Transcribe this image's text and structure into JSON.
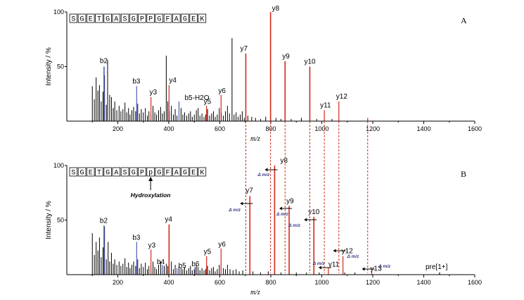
{
  "chart_data": [
    {
      "type": "bar",
      "title": "",
      "panel_label": "A",
      "xlabel": "m/z",
      "ylabel": "Intensity / %",
      "xlim": [
        0,
        1600
      ],
      "x_ticks": [
        "200",
        "400",
        "600",
        "800",
        "1000",
        "1200",
        "1400",
        "1600"
      ],
      "ylim": [
        0,
        100
      ],
      "y_ticks": [
        "100",
        "50"
      ],
      "sequence": [
        "S",
        "G",
        "E",
        "T",
        "G",
        "A",
        "S",
        "G",
        "P",
        "P",
        "G",
        "F",
        "A",
        "G",
        "E",
        "K"
      ],
      "background_peaks": [
        [
          100,
          32
        ],
        [
          108,
          20
        ],
        [
          115,
          40
        ],
        [
          122,
          28
        ],
        [
          128,
          33
        ],
        [
          135,
          18
        ],
        [
          142,
          27
        ],
        [
          148,
          42
        ],
        [
          155,
          15
        ],
        [
          160,
          56
        ],
        [
          168,
          24
        ],
        [
          175,
          22
        ],
        [
          182,
          12
        ],
        [
          188,
          18
        ],
        [
          196,
          10
        ],
        [
          205,
          14
        ],
        [
          212,
          9
        ],
        [
          220,
          11
        ],
        [
          228,
          17
        ],
        [
          235,
          8
        ],
        [
          242,
          12
        ],
        [
          248,
          6
        ],
        [
          255,
          10
        ],
        [
          262,
          13
        ],
        [
          270,
          9
        ],
        [
          278,
          16
        ],
        [
          285,
          7
        ],
        [
          292,
          11
        ],
        [
          300,
          8
        ],
        [
          308,
          12
        ],
        [
          316,
          5
        ],
        [
          322,
          9
        ],
        [
          330,
          6
        ],
        [
          338,
          14
        ],
        [
          345,
          8
        ],
        [
          352,
          6
        ],
        [
          360,
          10
        ],
        [
          368,
          13
        ],
        [
          375,
          7
        ],
        [
          382,
          9
        ],
        [
          390,
          60
        ],
        [
          396,
          18
        ],
        [
          402,
          9
        ],
        [
          410,
          14
        ],
        [
          418,
          6
        ],
        [
          425,
          11
        ],
        [
          432,
          5
        ],
        [
          440,
          9
        ],
        [
          448,
          12
        ],
        [
          455,
          6
        ],
        [
          462,
          8
        ],
        [
          470,
          5
        ],
        [
          478,
          7
        ],
        [
          485,
          9
        ],
        [
          492,
          4
        ],
        [
          500,
          6
        ],
        [
          508,
          10
        ],
        [
          515,
          12
        ],
        [
          522,
          5
        ],
        [
          530,
          7
        ],
        [
          538,
          4
        ],
        [
          545,
          6
        ],
        [
          552,
          11
        ],
        [
          560,
          5
        ],
        [
          568,
          7
        ],
        [
          575,
          9
        ],
        [
          582,
          4
        ],
        [
          590,
          6
        ],
        [
          598,
          12
        ],
        [
          606,
          8
        ],
        [
          614,
          5
        ],
        [
          622,
          9
        ],
        [
          630,
          14
        ],
        [
          638,
          7
        ],
        [
          648,
          76
        ],
        [
          656,
          6
        ],
        [
          664,
          8
        ],
        [
          672,
          4
        ],
        [
          680,
          6
        ],
        [
          688,
          9
        ],
        [
          696,
          3
        ],
        [
          710,
          5
        ],
        [
          725,
          4
        ],
        [
          740,
          3
        ],
        [
          760,
          2
        ],
        [
          780,
          4
        ],
        [
          820,
          3
        ],
        [
          840,
          2
        ],
        [
          880,
          2
        ],
        [
          920,
          3
        ],
        [
          980,
          2
        ],
        [
          1040,
          2
        ]
      ],
      "annotated_peaks": [
        {
          "label": "b2",
          "mz": 146,
          "intensity": 50,
          "color": "#4a5fb5"
        },
        {
          "label": "b3",
          "mz": 274,
          "intensity": 32,
          "color": "#4a5fb5"
        },
        {
          "label": "y3",
          "mz": 330,
          "intensity": 22,
          "color": "#d12a1a"
        },
        {
          "label": "y4",
          "mz": 401,
          "intensity": 33,
          "color": "#d12a1a"
        },
        {
          "label": "b5-H2O",
          "mz": 440,
          "intensity": 18,
          "color": "#4a5fb5"
        },
        {
          "label": "y5",
          "mz": 548,
          "intensity": 14,
          "color": "#d12a1a"
        },
        {
          "label": "y6",
          "mz": 605,
          "intensity": 24,
          "color": "#d12a1a"
        },
        {
          "label": "y7",
          "mz": 702,
          "intensity": 62,
          "color": "#d12a1a"
        },
        {
          "label": "y8",
          "mz": 799,
          "intensity": 100,
          "color": "#d12a1a"
        },
        {
          "label": "y9",
          "mz": 856,
          "intensity": 55,
          "color": "#d12a1a"
        },
        {
          "label": "y10",
          "mz": 953,
          "intensity": 50,
          "color": "#d12a1a"
        },
        {
          "label": "y11",
          "mz": 1010,
          "intensity": 10,
          "color": "#d12a1a"
        },
        {
          "label": "y12",
          "mz": 1067,
          "intensity": 18,
          "color": "#d12a1a"
        },
        {
          "label": "",
          "mz": 1180,
          "intensity": 3,
          "color": "#d12a1a"
        }
      ]
    },
    {
      "type": "bar",
      "title": "",
      "panel_label": "B",
      "xlabel": "m/z",
      "ylabel": "Intensity / %",
      "xlim": [
        0,
        1600
      ],
      "x_ticks": [
        "200",
        "400",
        "600",
        "800",
        "1000",
        "1200",
        "1400",
        "1600"
      ],
      "ylim": [
        0,
        100
      ],
      "y_ticks": [
        "100",
        "50"
      ],
      "sequence": [
        "S",
        "G",
        "E",
        "T",
        "G",
        "A",
        "S",
        "G",
        "P",
        "p",
        "G",
        "F",
        "A",
        "G",
        "E",
        "K"
      ],
      "modified_residue_index": 9,
      "modification_label": "Hydroxylation",
      "delta_label": "Δ m/z",
      "precursor_label": "pre[1+]",
      "precursor_mz": 1462,
      "background_peaks": [
        [
          100,
          38
        ],
        [
          108,
          18
        ],
        [
          115,
          30
        ],
        [
          122,
          22
        ],
        [
          128,
          34
        ],
        [
          135,
          16
        ],
        [
          142,
          25
        ],
        [
          148,
          44
        ],
        [
          155,
          14
        ],
        [
          162,
          30
        ],
        [
          168,
          12
        ],
        [
          175,
          20
        ],
        [
          182,
          10
        ],
        [
          188,
          14
        ],
        [
          196,
          9
        ],
        [
          205,
          12
        ],
        [
          212,
          8
        ],
        [
          220,
          10
        ],
        [
          228,
          15
        ],
        [
          235,
          7
        ],
        [
          242,
          11
        ],
        [
          248,
          6
        ],
        [
          255,
          9
        ],
        [
          262,
          12
        ],
        [
          270,
          8
        ],
        [
          278,
          14
        ],
        [
          285,
          6
        ],
        [
          292,
          10
        ],
        [
          300,
          7
        ],
        [
          308,
          11
        ],
        [
          316,
          5
        ],
        [
          322,
          8
        ],
        [
          330,
          6
        ],
        [
          338,
          12
        ],
        [
          345,
          7
        ],
        [
          352,
          5
        ],
        [
          360,
          9
        ],
        [
          368,
          12
        ],
        [
          375,
          6
        ],
        [
          382,
          8
        ],
        [
          390,
          10
        ],
        [
          396,
          8
        ],
        [
          410,
          12
        ],
        [
          418,
          5
        ],
        [
          425,
          9
        ],
        [
          432,
          5
        ],
        [
          440,
          8
        ],
        [
          448,
          6
        ],
        [
          455,
          5
        ],
        [
          462,
          7
        ],
        [
          470,
          4
        ],
        [
          478,
          6
        ],
        [
          485,
          8
        ],
        [
          492,
          4
        ],
        [
          500,
          5
        ],
        [
          508,
          9
        ],
        [
          515,
          7
        ],
        [
          522,
          4
        ],
        [
          530,
          6
        ],
        [
          538,
          4
        ],
        [
          545,
          5
        ],
        [
          552,
          8
        ],
        [
          560,
          4
        ],
        [
          568,
          6
        ],
        [
          575,
          7
        ],
        [
          582,
          3
        ],
        [
          590,
          5
        ],
        [
          598,
          9
        ],
        [
          614,
          6
        ],
        [
          622,
          5
        ],
        [
          630,
          9
        ],
        [
          640,
          5
        ],
        [
          652,
          4
        ],
        [
          664,
          5
        ],
        [
          676,
          3
        ],
        [
          690,
          4
        ],
        [
          730,
          3
        ],
        [
          760,
          2
        ],
        [
          790,
          3
        ],
        [
          840,
          2
        ],
        [
          900,
          2
        ],
        [
          940,
          2
        ],
        [
          990,
          2
        ],
        [
          1090,
          2
        ],
        [
          1130,
          2
        ]
      ],
      "annotated_peaks": [
        {
          "label": "b2",
          "mz": 146,
          "intensity": 45,
          "color": "#4a5fb5"
        },
        {
          "label": "b3",
          "mz": 274,
          "intensity": 30,
          "color": "#4a5fb5"
        },
        {
          "label": "y3",
          "mz": 330,
          "intensity": 23,
          "color": "#d12a1a"
        },
        {
          "label": "y4",
          "mz": 401,
          "intensity": 46,
          "color": "#d12a1a"
        },
        {
          "label": "b4",
          "mz": 375,
          "intensity": 9,
          "color": "#4a5fb5"
        },
        {
          "label": "b5",
          "mz": 432,
          "intensity": 6,
          "color": "#4a5fb5"
        },
        {
          "label": "b6",
          "mz": 503,
          "intensity": 7,
          "color": "#4a5fb5"
        },
        {
          "label": "y5",
          "mz": 548,
          "intensity": 17,
          "color": "#d12a1a"
        },
        {
          "label": "y6",
          "mz": 605,
          "intensity": 24,
          "color": "#d12a1a"
        },
        {
          "label": "y7",
          "mz": 718,
          "intensity": 72,
          "color": "#d12a1a"
        },
        {
          "label": "y8",
          "mz": 815,
          "intensity": 100,
          "color": "#d12a1a"
        },
        {
          "label": "y9",
          "mz": 872,
          "intensity": 63,
          "color": "#d12a1a"
        },
        {
          "label": "y10",
          "mz": 969,
          "intensity": 53,
          "color": "#d12a1a"
        },
        {
          "label": "y11",
          "mz": 1026,
          "intensity": 6,
          "color": "#d12a1a"
        },
        {
          "label": "y12",
          "mz": 1083,
          "intensity": 17,
          "color": "#d12a1a"
        },
        {
          "label": "y13",
          "mz": 1196,
          "intensity": 3,
          "color": "#d12a1a"
        },
        {
          "label": "",
          "mz": 1462,
          "intensity": 2,
          "color": "#000000"
        }
      ]
    }
  ]
}
